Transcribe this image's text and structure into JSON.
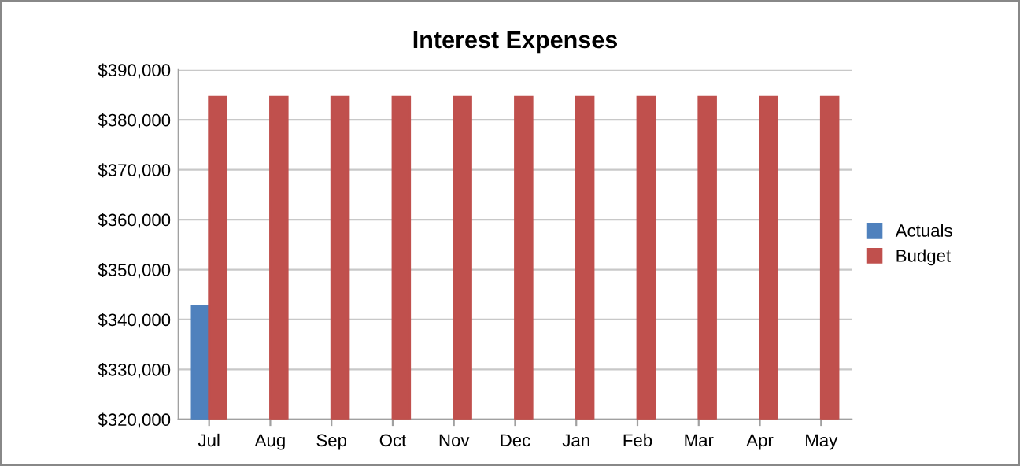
{
  "chart_data": {
    "type": "bar",
    "title": "Interest Expenses",
    "categories": [
      "Jul",
      "Aug",
      "Sep",
      "Oct",
      "Nov",
      "Dec",
      "Jan",
      "Feb",
      "Mar",
      "Apr",
      "May"
    ],
    "series": [
      {
        "name": "Actuals",
        "color": "#4f81bd",
        "values": [
          342600,
          null,
          null,
          null,
          null,
          null,
          null,
          null,
          null,
          null,
          null
        ]
      },
      {
        "name": "Budget",
        "color": "#c0504d",
        "values": [
          384600,
          384600,
          384600,
          384600,
          384600,
          384600,
          384600,
          384600,
          384600,
          384600,
          384600
        ]
      }
    ],
    "ylim": [
      320000,
      390000
    ],
    "yticks": [
      {
        "value": 320000,
        "label": "$320,000"
      },
      {
        "value": 330000,
        "label": "$330,000"
      },
      {
        "value": 340000,
        "label": "$340,000"
      },
      {
        "value": 350000,
        "label": "$350,000"
      },
      {
        "value": 360000,
        "label": "$360,000"
      },
      {
        "value": 370000,
        "label": "$370,000"
      },
      {
        "value": 380000,
        "label": "$380,000"
      },
      {
        "value": 390000,
        "label": "$390,000"
      }
    ],
    "grid": "y",
    "legend": "right"
  }
}
